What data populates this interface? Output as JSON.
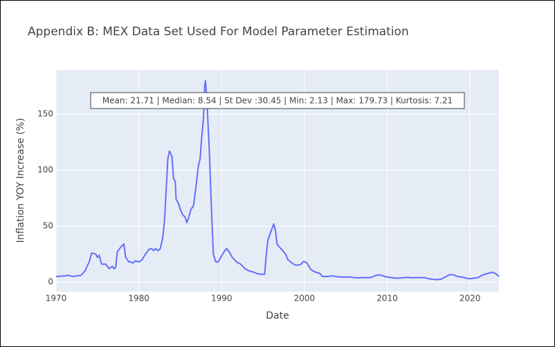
{
  "chart_data": {
    "type": "line",
    "title": "Appendix B: MEX Data Set Used For Model Parameter Estimation",
    "x_label": "Date",
    "y_label": "Inflation YOY Increase (%)",
    "annotation": "Mean: 21.71 | Median: 8.54 | St Dev :30.45 | Min: 2.13 | Max: 179.73 | Kurtosis: 7.21",
    "xlim": [
      1970,
      2023.5
    ],
    "ylim": [
      -8.6,
      189.5
    ],
    "xticks": [
      1970,
      1980,
      1990,
      2000,
      2010,
      2020
    ],
    "yticks": [
      0,
      50,
      100,
      150
    ],
    "grid": true,
    "x": [
      1970,
      1971,
      1971.5,
      1972,
      1973,
      1973.5,
      1974,
      1974.3,
      1974.8,
      1975,
      1975.2,
      1975.5,
      1976,
      1976.4,
      1976.8,
      1977,
      1977.2,
      1977.4,
      1977.8,
      1978.2,
      1978.4,
      1978.8,
      1979,
      1979.3,
      1979.6,
      1980,
      1980.4,
      1980.8,
      1981.2,
      1981.5,
      1981.8,
      1982,
      1982.3,
      1982.6,
      1982.9,
      1983.1,
      1983.3,
      1983.5,
      1983.7,
      1984,
      1984.2,
      1984.4,
      1984.5,
      1984.8,
      1985,
      1985.3,
      1985.6,
      1985.8,
      1986,
      1986.3,
      1986.6,
      1986.9,
      1987.2,
      1987.4,
      1987.6,
      1987.8,
      1987.95,
      1988.05,
      1988.2,
      1988.5,
      1988.8,
      1989,
      1989.3,
      1989.6,
      1989.9,
      1990.2,
      1990.6,
      1990.9,
      1991.3,
      1991.8,
      1992.3,
      1992.8,
      1993.3,
      1993.8,
      1994.3,
      1994.8,
      1995.2,
      1995.4,
      1995.6,
      1996,
      1996.3,
      1996.5,
      1996.7,
      1997,
      1997.4,
      1997.8,
      1998,
      1998.5,
      1998.8,
      1999.2,
      1999.6,
      1999.9,
      2000.3,
      2000.8,
      2001.3,
      2001.8,
      2002.2,
      2002.8,
      2003.3,
      2003.8,
      2004.3,
      2005,
      2005.5,
      2006,
      2006.5,
      2007,
      2008,
      2008.5,
      2009,
      2009.5,
      2010,
      2010.5,
      2011,
      2011.5,
      2012,
      2012.5,
      2013,
      2013.5,
      2014,
      2014.5,
      2015,
      2015.5,
      2016,
      2016.5,
      2017,
      2017.5,
      2018,
      2018.5,
      2019,
      2019.5,
      2020,
      2020.5,
      2021,
      2021.3,
      2021.8,
      2022.3,
      2022.7,
      2023,
      2023.5
    ],
    "series": [
      {
        "name": "Inflation",
        "color": "#636efa",
        "values": [
          5,
          5.5,
          6,
          5,
          6,
          10,
          18,
          26,
          25,
          22,
          24,
          16,
          16,
          12,
          14,
          12,
          13,
          27,
          31,
          34,
          22,
          18,
          18,
          17,
          19,
          18,
          20,
          25,
          29,
          30,
          28,
          30,
          28,
          30,
          40,
          55,
          82,
          110,
          117,
          112,
          92,
          90,
          74,
          70,
          65,
          60,
          58,
          53,
          57,
          65,
          68,
          85,
          104,
          110,
          130,
          145,
          175,
          179.73,
          165,
          120,
          60,
          25,
          18,
          18,
          22,
          26,
          30,
          27,
          22,
          18,
          16,
          12,
          10,
          9,
          7.5,
          7,
          7,
          25,
          38,
          46,
          52,
          46,
          34,
          31,
          28,
          24,
          20,
          17,
          15.5,
          15,
          16,
          18.5,
          17,
          11,
          9,
          8,
          5,
          5,
          5.5,
          5,
          4.5,
          4.5,
          4.5,
          4,
          3.8,
          4,
          4,
          5.5,
          6.5,
          5.5,
          4.5,
          4,
          3.5,
          3.5,
          4,
          4.2,
          3.8,
          4,
          4,
          4,
          3,
          2.5,
          2.2,
          2.5,
          4.5,
          6.5,
          6.5,
          5,
          4.5,
          3.5,
          3,
          3.5,
          4,
          5.5,
          7,
          8,
          8.7,
          8,
          5
        ]
      }
    ]
  }
}
